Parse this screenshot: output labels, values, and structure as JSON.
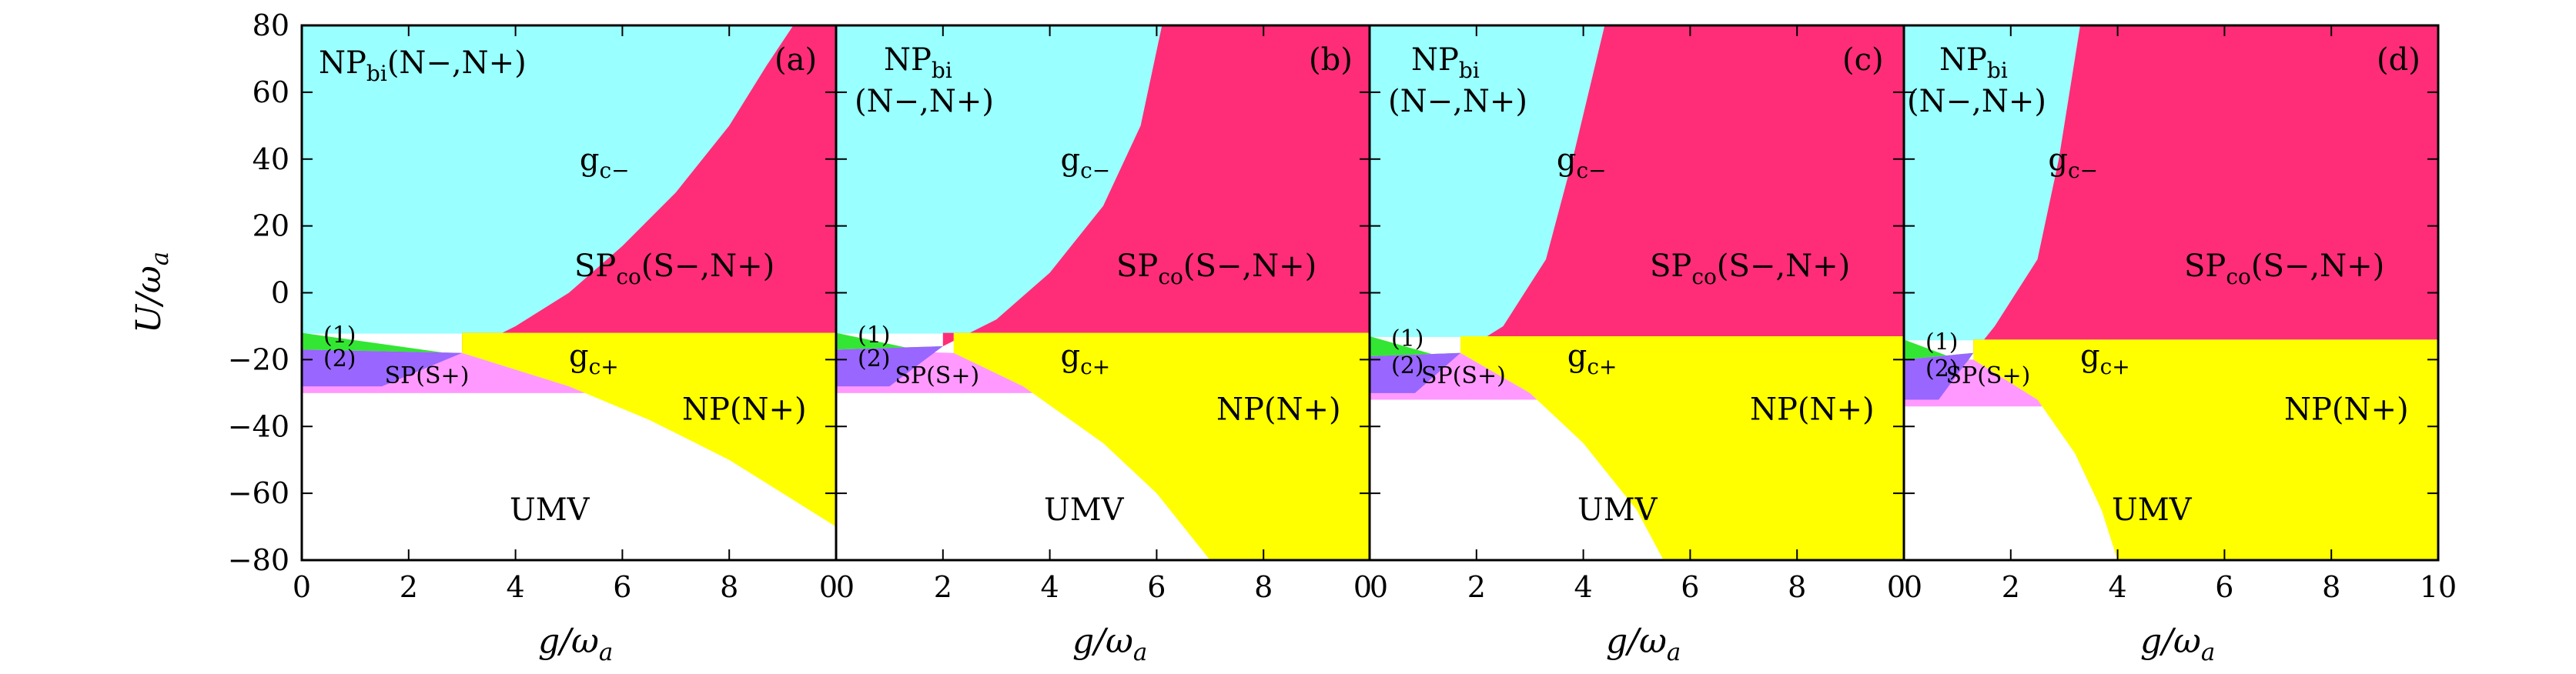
{
  "figure": {
    "colors": {
      "np_bi": "#99ffff",
      "sp_co": "#ff2d78",
      "np_plus": "#ffff00",
      "sp_plus": "#ff99ff",
      "region1": "#33e633",
      "region2": "#9966ff",
      "umv": "#ffffff"
    }
  },
  "chart_data": {
    "type": "area",
    "shared": {
      "ylabel_main": "U/ω",
      "ylabel_sub": "a",
      "xlabel_main": "g/ω",
      "xlabel_sub": "a",
      "ylim": [
        -80,
        80
      ],
      "yticks": [
        80,
        60,
        40,
        20,
        0,
        -20,
        -40,
        -60,
        -80
      ],
      "ytick_labels": [
        "80",
        "60",
        "40",
        "20",
        "0",
        "−20",
        "−40",
        "−60",
        "−80"
      ],
      "xlim": [
        0,
        10
      ],
      "xticks": [
        0,
        2,
        4,
        6,
        8
      ],
      "xtick_labels_inner": [
        "0",
        "2",
        "4",
        "6",
        "8",
        "0"
      ],
      "xtick_labels_last": [
        "0",
        "2",
        "4",
        "6",
        "8",
        "10"
      ],
      "labels": {
        "np_bi_main": "NP",
        "np_bi_sub": "bi",
        "np_bi_args": "(N−,N+)",
        "sp_co_main": "SP",
        "sp_co_sub": "co",
        "sp_co_args": "(S−,N+)",
        "np_plus": "NP(N+)",
        "sp_plus": "SP(S+)",
        "umv": "UMV",
        "gc_minus_main": "g",
        "gc_minus_sub": "c−",
        "gc_plus_main": "g",
        "gc_plus_sub": "c+",
        "region1": "(1)",
        "region2": "(2)"
      }
    },
    "panels": [
      {
        "tag": "(a)",
        "np_bi_layout": "inline",
        "gc_minus_curve": [
          [
            3,
            -18
          ],
          [
            4,
            -10
          ],
          [
            5,
            0
          ],
          [
            6,
            14
          ],
          [
            7,
            30
          ],
          [
            8,
            50
          ],
          [
            8.7,
            68
          ],
          [
            9.2,
            80
          ]
        ],
        "gc_plus_curve": [
          [
            3,
            -18
          ],
          [
            5,
            -28
          ],
          [
            6.5,
            -38
          ],
          [
            8,
            -50
          ],
          [
            10,
            -70
          ]
        ],
        "np_plus_top": -12,
        "sp_plus_bottom": -30,
        "region1_top": -12,
        "region2_top": -17,
        "region2_bottom": -28
      },
      {
        "tag": "(b)",
        "np_bi_layout": "stacked",
        "gc_minus_curve": [
          [
            2,
            -16
          ],
          [
            3,
            -8
          ],
          [
            4,
            6
          ],
          [
            5,
            26
          ],
          [
            5.7,
            50
          ],
          [
            6.1,
            80
          ]
        ],
        "gc_plus_curve": [
          [
            2.2,
            -18
          ],
          [
            3.5,
            -28
          ],
          [
            5,
            -45
          ],
          [
            6,
            -60
          ],
          [
            7,
            -80
          ]
        ],
        "np_plus_top": -12,
        "sp_plus_bottom": -30,
        "region1_top": -12,
        "region2_top": -17,
        "region2_bottom": -28
      },
      {
        "tag": "(c)",
        "np_bi_layout": "stacked",
        "gc_minus_curve": [
          [
            1.7,
            -18
          ],
          [
            2.5,
            -10
          ],
          [
            3.3,
            10
          ],
          [
            3.8,
            40
          ],
          [
            4.1,
            60
          ],
          [
            4.4,
            80
          ]
        ],
        "gc_plus_curve": [
          [
            1.7,
            -18
          ],
          [
            3,
            -30
          ],
          [
            4,
            -45
          ],
          [
            5,
            -65
          ],
          [
            5.5,
            -80
          ]
        ],
        "np_plus_top": -13,
        "sp_plus_bottom": -32,
        "region1_top": -13,
        "region2_top": -19,
        "region2_bottom": -30
      },
      {
        "tag": "(d)",
        "np_bi_layout": "stacked",
        "gc_minus_curve": [
          [
            1.3,
            -18
          ],
          [
            1.7,
            -10
          ],
          [
            2.5,
            10
          ],
          [
            2.9,
            40
          ],
          [
            3.1,
            60
          ],
          [
            3.3,
            80
          ]
        ],
        "gc_plus_curve": [
          [
            1.3,
            -20
          ],
          [
            2.5,
            -32
          ],
          [
            3.2,
            -48
          ],
          [
            3.7,
            -65
          ],
          [
            4,
            -80
          ]
        ],
        "np_plus_top": -14,
        "sp_plus_bottom": -34,
        "region1_top": -14,
        "region2_top": -20,
        "region2_bottom": -32
      }
    ]
  }
}
